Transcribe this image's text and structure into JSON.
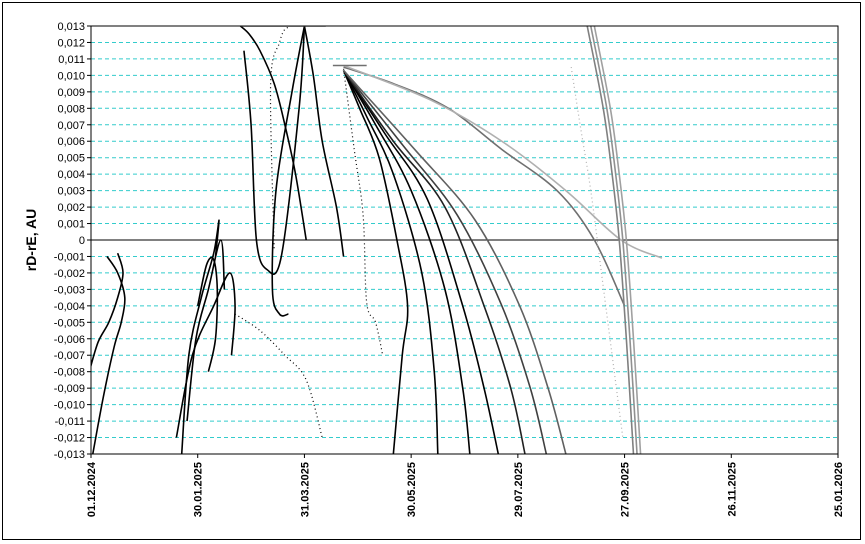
{
  "chart_data": {
    "type": "line",
    "title": "",
    "xlabel": "",
    "ylabel": "rD-rE, AU",
    "ylim": [
      -0.013,
      0.013
    ],
    "ytick_step": 0.001,
    "xlim": [
      "2024-12-01",
      "2026-01-25"
    ],
    "x_tick_labels": [
      "01.12.2024",
      "30.01.2025",
      "31.03.2025",
      "30.05.2025",
      "29.07.2025",
      "27.09.2025",
      "26.11.2025",
      "25.01.2026"
    ],
    "x_tick_dates": [
      "2024-12-01",
      "2025-01-30",
      "2025-03-31",
      "2025-05-30",
      "2025-07-29",
      "2025-09-27",
      "2025-11-26",
      "2026-01-25"
    ],
    "grid": true,
    "zero_line": true,
    "series": [
      {
        "color": "#000000",
        "style": "line",
        "x": [
          "2025-02-23",
          "2025-02-28",
          "2025-03-06",
          "2025-03-14",
          "2025-03-20",
          "2025-03-26",
          "2025-04-01"
        ],
        "y": [
          0.013,
          0.0125,
          0.0115,
          0.0095,
          0.007,
          0.004,
          0.0
        ]
      },
      {
        "color": "#000000",
        "style": "line",
        "x": [
          "2025-02-25",
          "2025-03-01",
          "2025-03-04",
          "2025-03-10",
          "2025-03-18",
          "2025-03-28",
          "2025-03-31"
        ],
        "y": [
          0.0115,
          0.007,
          0.0,
          -0.0018,
          -0.001,
          0.008,
          0.013
        ]
      },
      {
        "color": "#000000",
        "style": "line",
        "x": [
          "2025-03-31",
          "2025-03-24",
          "2025-03-15",
          "2025-03-13",
          "2025-03-17",
          "2025-03-22"
        ],
        "y": [
          0.013,
          0.009,
          0.003,
          -0.003,
          -0.0045,
          -0.0045
        ]
      },
      {
        "color": "#000000",
        "style": "line",
        "x": [
          "2025-03-31",
          "2025-04-05",
          "2025-04-10",
          "2025-04-18",
          "2025-04-22"
        ],
        "y": [
          0.013,
          0.01,
          0.006,
          0.002,
          -0.001
        ]
      },
      {
        "color": "#000000",
        "style": "line",
        "x": [
          "2025-04-22",
          "2025-05-01",
          "2025-05-12",
          "2025-05-22",
          "2025-05-28",
          "2025-05-25",
          "2025-05-20"
        ],
        "y": [
          0.0103,
          0.008,
          0.005,
          0.0,
          -0.004,
          -0.007,
          -0.013
        ]
      },
      {
        "color": "#000000",
        "style": "line",
        "x": [
          "2025-04-22",
          "2025-05-05",
          "2025-05-20",
          "2025-06-05",
          "2025-06-12",
          "2025-06-14"
        ],
        "y": [
          0.0103,
          0.0075,
          0.004,
          -0.002,
          -0.008,
          -0.013
        ]
      },
      {
        "color": "#000000",
        "style": "line",
        "x": [
          "2025-04-22",
          "2025-05-10",
          "2025-05-30",
          "2025-06-18",
          "2025-06-28",
          "2025-07-02"
        ],
        "y": [
          0.0103,
          0.007,
          0.003,
          -0.003,
          -0.009,
          -0.013
        ]
      },
      {
        "color": "#000000",
        "style": "line",
        "x": [
          "2025-04-22",
          "2025-05-15",
          "2025-06-08",
          "2025-06-28",
          "2025-07-10",
          "2025-07-18"
        ],
        "y": [
          0.0103,
          0.0065,
          0.0025,
          -0.004,
          -0.009,
          -0.013
        ]
      },
      {
        "color": "#202020",
        "style": "line",
        "x": [
          "2025-04-22",
          "2025-05-20",
          "2025-06-18",
          "2025-07-10",
          "2025-07-25",
          "2025-08-02"
        ],
        "y": [
          0.0103,
          0.006,
          0.002,
          -0.004,
          -0.009,
          -0.013
        ]
      },
      {
        "color": "#404040",
        "style": "line",
        "x": [
          "2025-04-22",
          "2025-05-25",
          "2025-06-25",
          "2025-07-20",
          "2025-08-05",
          "2025-08-14"
        ],
        "y": [
          0.0103,
          0.0058,
          0.0015,
          -0.004,
          -0.009,
          -0.013
        ]
      },
      {
        "color": "#606060",
        "style": "line",
        "x": [
          "2025-04-22",
          "2025-06-01",
          "2025-07-05",
          "2025-07-30",
          "2025-08-15",
          "2025-08-25"
        ],
        "y": [
          0.0103,
          0.0055,
          0.0012,
          -0.004,
          -0.009,
          -0.013
        ]
      },
      {
        "color": "#707070",
        "style": "line",
        "x": [
          "2025-04-22",
          "2025-05-20",
          "2025-06-20",
          "2025-07-20",
          "2025-08-20",
          "2025-09-10",
          "2025-09-27"
        ],
        "y": [
          0.0105,
          0.0095,
          0.008,
          0.0055,
          0.003,
          0.0,
          -0.004
        ]
      },
      {
        "color": "#b0b0b0",
        "style": "line",
        "x": [
          "2025-04-22",
          "2025-06-10",
          "2025-07-20",
          "2025-08-25",
          "2025-09-25",
          "2025-10-18"
        ],
        "y": [
          0.0106,
          0.0085,
          0.006,
          0.003,
          0.0,
          -0.0011
        ]
      },
      {
        "color": "#808080",
        "style": "line",
        "x": [
          "2025-09-06",
          "2025-09-15",
          "2025-09-20",
          "2025-09-24",
          "2025-09-28",
          "2025-10-02"
        ],
        "y": [
          0.013,
          0.008,
          0.004,
          0.0,
          -0.006,
          -0.013
        ]
      },
      {
        "color": "#909090",
        "style": "line",
        "x": [
          "2025-09-08",
          "2025-09-17",
          "2025-09-22",
          "2025-09-26",
          "2025-09-30",
          "2025-10-04"
        ],
        "y": [
          0.013,
          0.008,
          0.004,
          0.0,
          -0.006,
          -0.013
        ]
      },
      {
        "color": "#a0a0a0",
        "style": "line",
        "x": [
          "2025-09-10",
          "2025-09-19",
          "2025-09-24",
          "2025-09-28",
          "2025-10-02",
          "2025-10-06"
        ],
        "y": [
          0.013,
          0.008,
          0.004,
          0.0,
          -0.006,
          -0.013
        ]
      },
      {
        "color": "#000000",
        "style": "line",
        "x": [
          "2025-01-21",
          "2025-01-25",
          "2025-02-01",
          "2025-02-08",
          "2025-02-11",
          "2025-02-09"
        ],
        "y": [
          -0.013,
          -0.007,
          -0.0035,
          -0.0008,
          0.0012,
          -0.001
        ]
      },
      {
        "color": "#000000",
        "style": "line",
        "x": [
          "2025-01-24",
          "2025-01-29",
          "2025-02-05",
          "2025-02-12",
          "2025-02-14"
        ],
        "y": [
          -0.011,
          -0.006,
          -0.003,
          0.0,
          -0.003
        ]
      },
      {
        "color": "#000000",
        "style": "line",
        "x": [
          "2025-01-18",
          "2025-01-27",
          "2025-02-08",
          "2025-02-17",
          "2025-02-20",
          "2025-02-18"
        ],
        "y": [
          -0.012,
          -0.007,
          -0.004,
          -0.002,
          -0.004,
          -0.007
        ]
      },
      {
        "color": "#000000",
        "style": "line",
        "x": [
          "2025-01-30",
          "2025-02-04",
          "2025-02-08",
          "2025-02-10",
          "2025-02-09",
          "2025-02-05"
        ],
        "y": [
          -0.004,
          -0.0015,
          -0.0012,
          -0.003,
          -0.006,
          -0.008
        ]
      },
      {
        "color": "#000000",
        "style": "line",
        "x": [
          "2024-11-30",
          "2024-12-05",
          "2024-12-11",
          "2024-12-16",
          "2024-12-19",
          "2024-12-16"
        ],
        "y": [
          -0.008,
          -0.0062,
          -0.005,
          -0.0035,
          -0.002,
          -0.0008
        ]
      },
      {
        "color": "#000000",
        "style": "line",
        "x": [
          "2024-12-02",
          "2024-12-08",
          "2024-12-14",
          "2024-12-18",
          "2024-12-20",
          "2024-12-16",
          "2024-12-10"
        ],
        "y": [
          -0.013,
          -0.0095,
          -0.0065,
          -0.005,
          -0.0035,
          -0.002,
          -0.001
        ]
      },
      {
        "color": "#000000",
        "style": "dotted",
        "x": [
          "2025-02-20",
          "2025-03-06",
          "2025-03-20",
          "2025-04-01",
          "2025-04-10"
        ],
        "y": [
          -0.0045,
          -0.0055,
          -0.007,
          -0.0085,
          -0.012
        ]
      },
      {
        "color": "#000000",
        "style": "dotted",
        "x": [
          "2025-04-22",
          "2025-04-28",
          "2025-05-03",
          "2025-05-05",
          "2025-05-10",
          "2025-05-14"
        ],
        "y": [
          0.0104,
          0.0055,
          0.0015,
          -0.0038,
          -0.005,
          -0.007
        ]
      },
      {
        "color": "#000000",
        "style": "dotted",
        "x": [
          "2025-03-14",
          "2025-03-12",
          "2025-03-17",
          "2025-03-20",
          "2025-03-23"
        ],
        "y": [
          -0.0005,
          0.0095,
          0.012,
          0.0128,
          0.0129
        ]
      },
      {
        "color": "#b0b0b0",
        "style": "dotted",
        "x": [
          "2025-08-28",
          "2025-09-02",
          "2025-09-08",
          "2025-09-14",
          "2025-09-20",
          "2025-09-26"
        ],
        "y": [
          0.0105,
          0.007,
          0.003,
          -0.002,
          -0.007,
          -0.012
        ]
      }
    ]
  }
}
